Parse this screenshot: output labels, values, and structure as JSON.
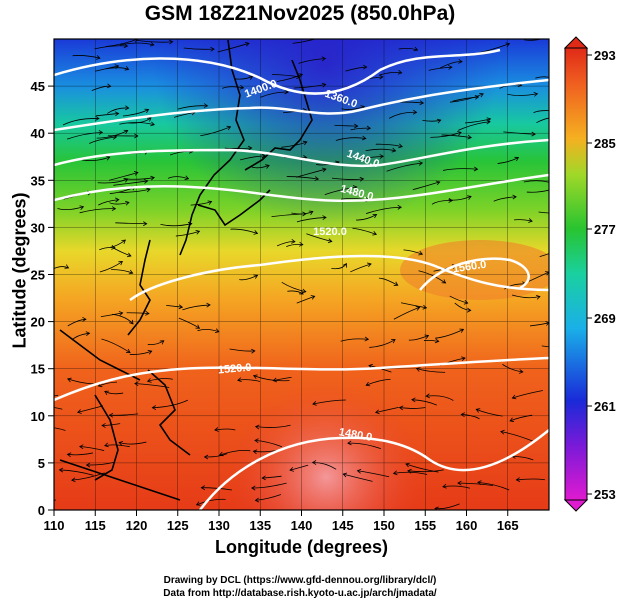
{
  "title": "GSM 18Z21Nov2025 (850.0hPa)",
  "axes": {
    "xlabel": "Longitude (degrees)",
    "ylabel": "Latitude (degrees)",
    "xticks": [
      "110",
      "115",
      "120",
      "125",
      "130",
      "135",
      "140",
      "145",
      "150",
      "155",
      "160",
      "165"
    ],
    "yticks": [
      "0",
      "5",
      "10",
      "15",
      "20",
      "25",
      "30",
      "35",
      "40",
      "45"
    ]
  },
  "colorbar": {
    "ticks": [
      "293",
      "285",
      "277",
      "269",
      "261",
      "253"
    ]
  },
  "contour_labels": [
    "1400.0",
    "1360.0",
    "1440.0",
    "1480.0",
    "1520.0",
    "1560.0",
    "1520.0",
    "1480.0"
  ],
  "credits": {
    "line1": "Drawing by DCL (https://www.gfd-dennou.org/library/dcl/)",
    "line2": "Data from http://database.rish.kyoto-u.ac.jp/arch/jmadata/"
  },
  "colors": {
    "warm": "#e83a1a",
    "cold": "#1a2fd0",
    "mid": "#4cc82a",
    "contour": "#ffffff"
  }
}
